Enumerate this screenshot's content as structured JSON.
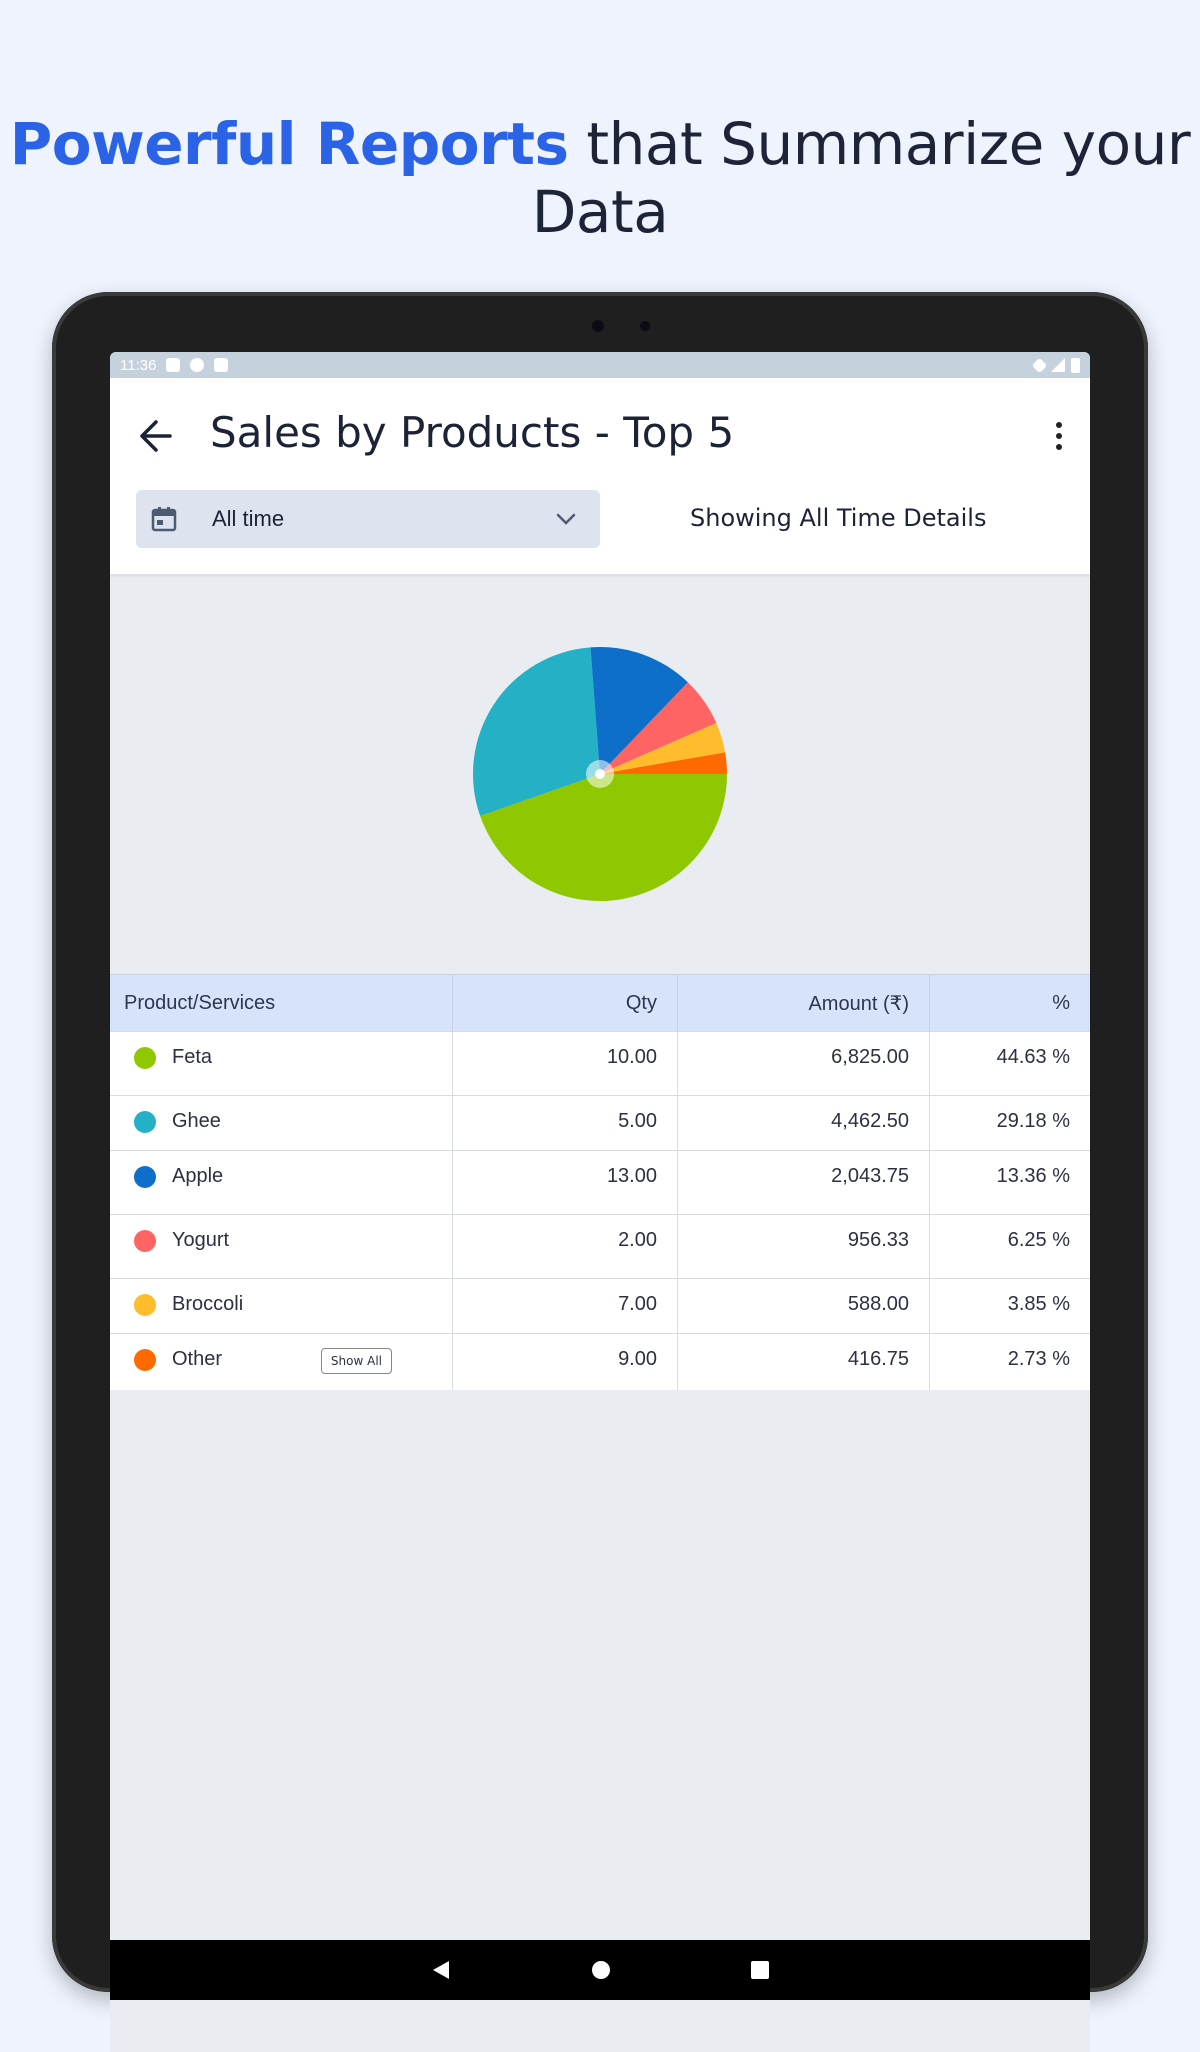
{
  "headline": {
    "accent": "Powerful Reports",
    "rest": " that Summarize your Data"
  },
  "status_bar": {
    "time": "11:36"
  },
  "app_bar": {
    "title": "Sales by Products - Top 5",
    "range_selector": {
      "value": "All time"
    },
    "showing_text": "Showing All Time Details"
  },
  "table": {
    "headers": {
      "product": "Product/Services",
      "qty": "Qty",
      "amount": "Amount (₹)",
      "percent": "%"
    },
    "rows": [
      {
        "name": "Feta",
        "qty": "10.00",
        "amount": "6,825.00",
        "percent": "44.63 %",
        "color": "#8fc700"
      },
      {
        "name": "Ghee",
        "qty": "5.00",
        "amount": "4,462.50",
        "percent": "29.18 %",
        "color": "#24b1c6"
      },
      {
        "name": "Apple",
        "qty": "13.00",
        "amount": "2,043.75",
        "percent": "13.36 %",
        "color": "#0d6fc9"
      },
      {
        "name": "Yogurt",
        "qty": "2.00",
        "amount": "956.33",
        "percent": "6.25 %",
        "color": "#ff6464"
      },
      {
        "name": "Broccoli",
        "qty": "7.00",
        "amount": "588.00",
        "percent": "3.85 %",
        "color": "#ffbd2e"
      },
      {
        "name": "Other",
        "qty": "9.00",
        "amount": "416.75",
        "percent": "2.73 %",
        "color": "#ff6a00",
        "action": "Show All"
      }
    ]
  },
  "chart_data": {
    "type": "pie",
    "categories": [
      "Feta",
      "Ghee",
      "Apple",
      "Yogurt",
      "Broccoli",
      "Other"
    ],
    "values": [
      44.63,
      29.18,
      13.36,
      6.25,
      3.85,
      2.73
    ],
    "colors": [
      "#8fc700",
      "#24b1c6",
      "#0d6fc9",
      "#ff6464",
      "#ffbd2e",
      "#ff6a00"
    ]
  }
}
